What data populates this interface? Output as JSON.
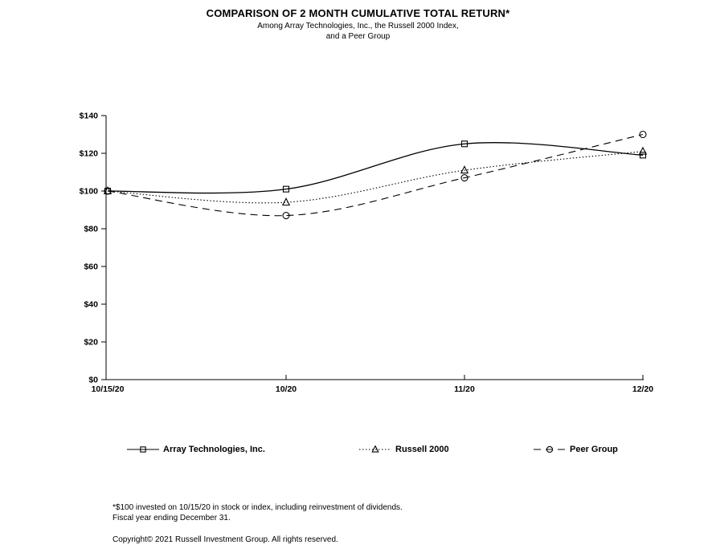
{
  "header": {
    "title": "COMPARISON OF 2 MONTH CUMULATIVE TOTAL RETURN*",
    "subtitle_line1": "Among Array Technologies, Inc., the Russell 2000 Index,",
    "subtitle_line2": "and a Peer Group"
  },
  "chart_data": {
    "type": "line",
    "categories": [
      "10/15/20",
      "10/20",
      "11/20",
      "12/20"
    ],
    "series": [
      {
        "name": "Array Technologies, Inc.",
        "marker": "square",
        "line_style": "solid",
        "values": [
          100,
          101,
          125,
          119
        ]
      },
      {
        "name": "Russell 2000",
        "marker": "triangle",
        "line_style": "dotted",
        "values": [
          100,
          94,
          111,
          121
        ]
      },
      {
        "name": "Peer Group",
        "marker": "circle",
        "line_style": "dashed",
        "values": [
          100,
          87,
          107,
          130
        ]
      }
    ],
    "title": "COMPARISON OF 2 MONTH CUMULATIVE TOTAL RETURN*",
    "xlabel": "",
    "ylabel": "",
    "ylim": [
      0,
      140
    ],
    "ytick_step": 20,
    "ytick_prefix": "$",
    "grid": false,
    "legend_position": "bottom",
    "line_color": "#000000",
    "background_color": "#ffffff"
  },
  "footnotes": {
    "line1": "*$100 invested on 10/15/20 in stock or index, including reinvestment of dividends.",
    "line2": "Fiscal year ending December 31.",
    "copyright": "Copyright© 2021 Russell Investment Group. All rights reserved."
  }
}
